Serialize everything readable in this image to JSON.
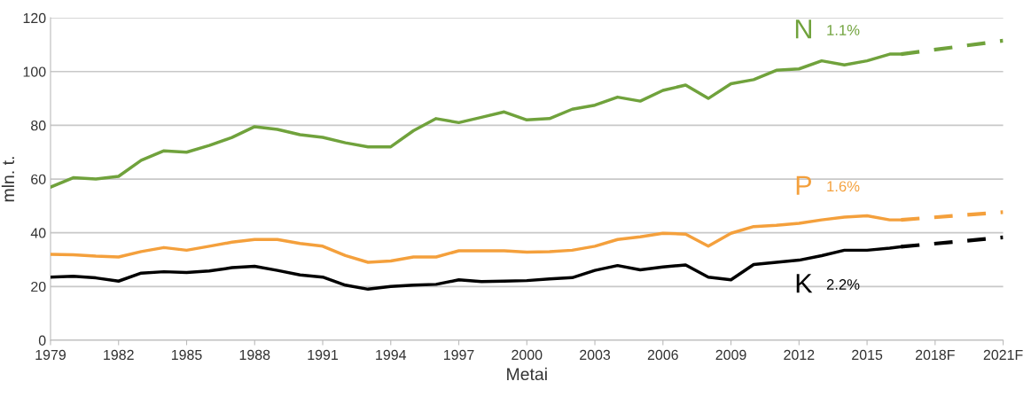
{
  "chart_data": {
    "type": "line",
    "xlabel": "Metai",
    "ylabel": "mln. t.",
    "xlim": [
      1979,
      2021
    ],
    "ylim": [
      0,
      120
    ],
    "xticks": [
      1979,
      1982,
      1985,
      1988,
      1991,
      1994,
      1997,
      2000,
      2003,
      2006,
      2009,
      2012,
      2015,
      {
        "value": 2018,
        "label": "2018F"
      },
      {
        "value": 2021,
        "label": "2021F"
      }
    ],
    "yticks": [
      0,
      20,
      40,
      60,
      80,
      100,
      120
    ],
    "grid": "y",
    "legend": false,
    "marker": "none",
    "annotations": [
      "1.1%",
      "1.6%",
      "2.2%"
    ],
    "series": [
      {
        "name": "N",
        "color": "#70a23c",
        "line_style": "solid",
        "x": [
          1979,
          1980,
          1981,
          1982,
          1983,
          1984,
          1985,
          1986,
          1987,
          1988,
          1989,
          1990,
          1991,
          1992,
          1993,
          1994,
          1995,
          1996,
          1997,
          1998,
          1999,
          2000,
          2001,
          2002,
          2003,
          2004,
          2005,
          2006,
          2007,
          2008,
          2009,
          2010,
          2011,
          2012,
          2013,
          2014,
          2015,
          2016,
          2016.5
        ],
        "values": [
          57,
          60.5,
          60,
          61,
          67,
          70.5,
          70,
          72.5,
          75.5,
          79.5,
          78.5,
          76.5,
          75.5,
          73.5,
          72,
          72,
          78,
          82.5,
          81,
          83,
          85,
          82,
          82.5,
          86,
          87.5,
          90.5,
          89,
          93,
          95,
          90,
          95.5,
          97,
          100.5,
          101,
          104,
          102.5,
          104,
          106.5,
          106.5
        ]
      },
      {
        "name": "P",
        "color": "#f4a03c",
        "line_style": "solid",
        "x": [
          1979,
          1980,
          1981,
          1982,
          1983,
          1984,
          1985,
          1986,
          1987,
          1988,
          1989,
          1990,
          1991,
          1992,
          1993,
          1994,
          1995,
          1996,
          1997,
          1998,
          1999,
          2000,
          2001,
          2002,
          2003,
          2004,
          2005,
          2006,
          2007,
          2008,
          2009,
          2010,
          2011,
          2012,
          2013,
          2014,
          2015,
          2016,
          2016.5
        ],
        "values": [
          32,
          31.8,
          31.3,
          31,
          33,
          34.5,
          33.5,
          35,
          36.5,
          37.5,
          37.5,
          36,
          35,
          31.5,
          29,
          29.5,
          31,
          31,
          33.3,
          33.3,
          33.3,
          32.8,
          33,
          33.5,
          35,
          37.5,
          38.5,
          39.8,
          39.5,
          35,
          39.8,
          42.3,
          42.8,
          43.5,
          44.8,
          45.8,
          46.3,
          44.8,
          44.8
        ]
      },
      {
        "name": "K",
        "color": "#000000",
        "line_style": "solid",
        "x": [
          1979,
          1980,
          1981,
          1982,
          1983,
          1984,
          1985,
          1986,
          1987,
          1988,
          1989,
          1990,
          1991,
          1992,
          1993,
          1994,
          1995,
          1996,
          1997,
          1998,
          1999,
          2000,
          2001,
          2002,
          2003,
          2004,
          2005,
          2006,
          2007,
          2008,
          2009,
          2010,
          2011,
          2012,
          2013,
          2014,
          2015,
          2016,
          2016.5
        ],
        "values": [
          23.5,
          23.8,
          23.2,
          22,
          25,
          25.5,
          25.2,
          25.8,
          27,
          27.5,
          26,
          24.3,
          23.5,
          20.5,
          19,
          20,
          20.5,
          20.8,
          22.5,
          21.8,
          22,
          22.2,
          22.8,
          23.3,
          26,
          27.8,
          26.2,
          27.3,
          28,
          23.5,
          22.5,
          28.2,
          29,
          29.8,
          31.5,
          33.5,
          33.5,
          34.3,
          34.8
        ]
      },
      {
        "color": "#70a23c",
        "line_style": "dashed",
        "x": [
          2016.5,
          2021
        ],
        "values": [
          106.5,
          111.5
        ]
      },
      {
        "color": "#f4a03c",
        "line_style": "dashed",
        "x": [
          2016.5,
          2021
        ],
        "values": [
          44.8,
          47.7
        ]
      },
      {
        "color": "#000000",
        "line_style": "dashed",
        "x": [
          2016.5,
          2021
        ],
        "values": [
          34.8,
          38.3
        ]
      }
    ]
  }
}
